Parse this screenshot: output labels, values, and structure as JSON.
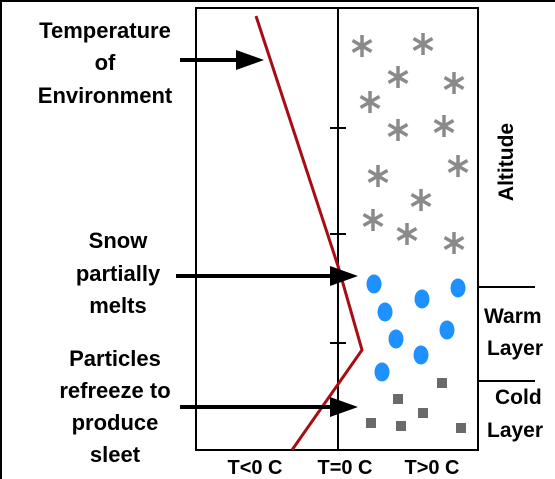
{
  "labels": {
    "temperature_of_environment": [
      "Temperature",
      "of",
      "Environment"
    ],
    "snow_partially_melts": [
      "Snow",
      "partially",
      "melts"
    ],
    "particles_refreeze": [
      "Particles",
      "refreeze to",
      "produce",
      "sleet"
    ],
    "altitude": "Altitude",
    "warm_layer": [
      "Warm",
      "Layer"
    ],
    "cold_layer": [
      "Cold",
      "Layer"
    ]
  },
  "axis": {
    "t_below_zero": "T<0 C",
    "t_zero": "T=0 C",
    "t_above_zero": "T>0 C"
  },
  "colors": {
    "temperature_line": "#a80c14",
    "snowflake": "#8a8a8a",
    "raindrop": "#1e90ff",
    "sleet": "#6a6a6a",
    "frame": "#000000"
  }
}
